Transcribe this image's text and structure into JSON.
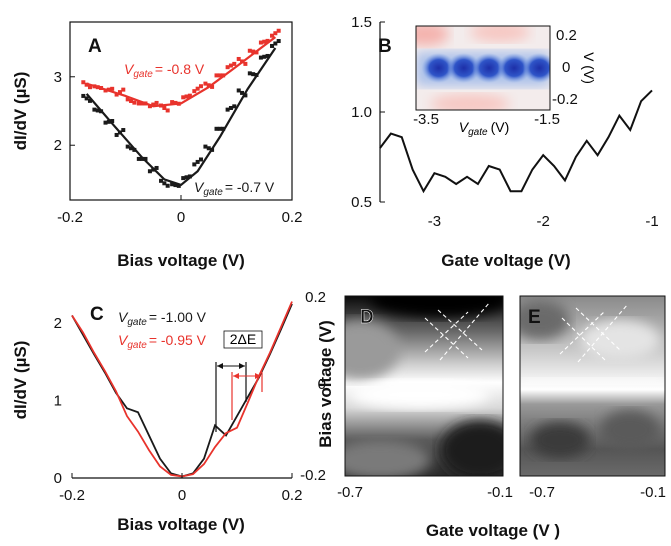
{
  "chart_data": [
    {
      "panel": "A",
      "type": "scatter",
      "xlabel": "Bias voltage (V)",
      "ylabel": "dI/dV  (µS)",
      "xlim": [
        -0.2,
        0.2
      ],
      "ylim": [
        1.2,
        3.8
      ],
      "xticks": [
        "-0.2",
        "0",
        "0.2"
      ],
      "yticks": [
        "2",
        "3"
      ],
      "series": [
        {
          "label_var": "V",
          "label_sub": "gate",
          "label_val": "= -0.8 V",
          "color": "#e8332c",
          "points_x": [
            -0.17,
            -0.15,
            -0.13,
            -0.11,
            -0.09,
            -0.07,
            -0.05,
            -0.03,
            -0.01,
            0.01,
            0.03,
            0.05,
            0.07,
            0.09,
            0.11,
            0.13,
            0.15,
            0.17
          ],
          "points_y": [
            2.92,
            2.86,
            2.8,
            2.74,
            2.67,
            2.61,
            2.57,
            2.58,
            2.63,
            2.7,
            2.79,
            2.9,
            3.02,
            3.14,
            3.26,
            3.38,
            3.5,
            3.6
          ],
          "fit_x": [
            -0.17,
            -0.1,
            -0.05,
            0.0,
            0.05,
            0.1,
            0.17
          ],
          "fit_y": [
            2.9,
            2.72,
            2.57,
            2.61,
            2.85,
            3.15,
            3.58
          ]
        },
        {
          "label_var": "V",
          "label_sub": "gate",
          "label_val": "= -0.7 V",
          "color": "#1a1a1a",
          "points_x": [
            -0.17,
            -0.15,
            -0.13,
            -0.11,
            -0.09,
            -0.07,
            -0.05,
            -0.03,
            -0.01,
            0.01,
            0.03,
            0.05,
            0.07,
            0.09,
            0.11,
            0.13,
            0.15,
            0.17
          ],
          "points_y": [
            2.72,
            2.52,
            2.33,
            2.15,
            1.98,
            1.8,
            1.62,
            1.48,
            1.43,
            1.52,
            1.72,
            1.98,
            2.24,
            2.52,
            2.8,
            3.05,
            3.28,
            3.45
          ],
          "fit_x": [
            -0.17,
            -0.12,
            -0.07,
            -0.03,
            0.0,
            0.03,
            0.07,
            0.12,
            0.17
          ],
          "fit_y": [
            2.75,
            2.28,
            1.82,
            1.5,
            1.42,
            1.62,
            2.12,
            2.82,
            3.42
          ]
        }
      ]
    },
    {
      "panel": "B",
      "type": "line",
      "xlabel": "Gate voltage (V)",
      "xlim": [
        -3.5,
        -1.0
      ],
      "ylim": [
        0.5,
        1.5
      ],
      "xticks": [
        "-3",
        "-2",
        "-1"
      ],
      "yticks": [
        "0.5",
        "1.0",
        "1.5"
      ],
      "x": [
        -3.5,
        -3.4,
        -3.3,
        -3.2,
        -3.1,
        -3.0,
        -2.9,
        -2.8,
        -2.7,
        -2.6,
        -2.5,
        -2.4,
        -2.3,
        -2.2,
        -2.1,
        -2.0,
        -1.9,
        -1.8,
        -1.7,
        -1.6,
        -1.5,
        -1.4,
        -1.3,
        -1.2,
        -1.1,
        -1.0
      ],
      "y": [
        0.8,
        0.88,
        0.86,
        0.68,
        0.56,
        0.66,
        0.64,
        0.6,
        0.64,
        0.6,
        0.7,
        0.68,
        0.56,
        0.56,
        0.68,
        0.76,
        0.7,
        0.62,
        0.75,
        0.84,
        0.76,
        0.86,
        0.98,
        0.9,
        1.06,
        1.12
      ],
      "inset": {
        "xlabel_var": "V",
        "xlabel_sub": "gate",
        "xlabel_unit": "(V)",
        "ylabel": "V (V)",
        "xticks": [
          "-3.5",
          "-1.5"
        ],
        "yticks": [
          "0.2",
          "0",
          "-0.2"
        ],
        "blob_x": [
          -3.3,
          -2.9,
          -2.5,
          -2.1,
          -1.7
        ]
      }
    },
    {
      "panel": "C",
      "type": "line",
      "xlabel": "Bias voltage (V)",
      "ylabel": "dI/dV  (µS)",
      "xlim": [
        -0.2,
        0.2
      ],
      "ylim": [
        0,
        2.3
      ],
      "xticks": [
        "-0.2",
        "0",
        "0.2"
      ],
      "yticks": [
        "0",
        "1",
        "2"
      ],
      "delta_label": "2ΔE",
      "series": [
        {
          "label_var": "V",
          "label_sub": "gate",
          "label_val": "= -1.00 V",
          "color": "#1a1a1a",
          "x": [
            -0.2,
            -0.18,
            -0.16,
            -0.14,
            -0.12,
            -0.1,
            -0.08,
            -0.06,
            -0.04,
            -0.02,
            0.0,
            0.02,
            0.04,
            0.06,
            0.08,
            0.1,
            0.12,
            0.14,
            0.16,
            0.18,
            0.2
          ],
          "y": [
            2.1,
            1.85,
            1.6,
            1.36,
            1.1,
            0.9,
            0.85,
            0.55,
            0.25,
            0.06,
            0.02,
            0.06,
            0.25,
            0.68,
            0.55,
            0.8,
            1.05,
            1.3,
            1.6,
            1.92,
            2.25
          ]
        },
        {
          "label_var": "V",
          "label_sub": "gate",
          "label_val": "= -0.95 V",
          "color": "#e8332c",
          "x": [
            -0.2,
            -0.18,
            -0.16,
            -0.14,
            -0.12,
            -0.1,
            -0.08,
            -0.06,
            -0.04,
            -0.02,
            0.0,
            0.02,
            0.04,
            0.06,
            0.08,
            0.1,
            0.12,
            0.14,
            0.16,
            0.18,
            0.2
          ],
          "y": [
            2.1,
            1.88,
            1.62,
            1.38,
            1.12,
            0.8,
            0.6,
            0.36,
            0.15,
            0.04,
            0.02,
            0.05,
            0.18,
            0.4,
            0.58,
            0.65,
            0.98,
            1.32,
            1.62,
            1.95,
            2.28
          ]
        }
      ]
    },
    {
      "panel": "D",
      "type": "heatmap",
      "ylabel": "Bias voltage (V)",
      "xticks": [
        "-0.7",
        "-0.1"
      ],
      "yticks": [
        "0.2",
        "0",
        "-0.2"
      ]
    },
    {
      "panel": "E",
      "type": "heatmap",
      "xticks": [
        "-0.7",
        "-0.1"
      ],
      "shared_xlabel": "Gate voltage (V )"
    }
  ],
  "colors": {
    "red": "#e8332c",
    "black": "#1a1a1a"
  }
}
